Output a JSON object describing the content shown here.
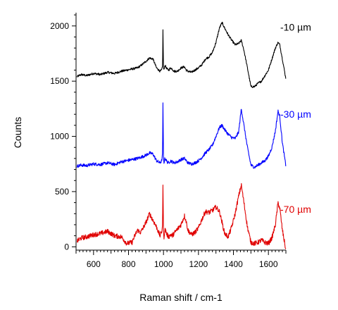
{
  "chart_data": {
    "type": "line",
    "title": "",
    "xlabel": "Raman shift / cm-1",
    "ylabel": "Counts",
    "xlim": [
      500,
      1700
    ],
    "ylim": [
      -30,
      2120
    ],
    "xticks": [
      600,
      800,
      1000,
      1200,
      1400,
      1600
    ],
    "yticks": [
      0,
      500,
      1000,
      1500,
      2000
    ],
    "grid": false,
    "legend": "right-of-traces",
    "series": [
      {
        "name": "-10 µm",
        "color": "#000000",
        "x": [
          505,
          530,
          560,
          600,
          640,
          680,
          720,
          760,
          790,
          820,
          850,
          870,
          900,
          920,
          940,
          960,
          980,
          990,
          995,
          997,
          1000,
          1003,
          1006,
          1010,
          1020,
          1030,
          1040,
          1050,
          1060,
          1080,
          1100,
          1120,
          1130,
          1140,
          1160,
          1180,
          1200,
          1220,
          1240,
          1260,
          1280,
          1300,
          1320,
          1335,
          1350,
          1370,
          1390,
          1410,
          1430,
          1445,
          1460,
          1480,
          1500,
          1520,
          1540,
          1560,
          1580,
          1600,
          1620,
          1640,
          1655,
          1665,
          1680,
          1700
        ],
        "y": [
          1540,
          1560,
          1550,
          1570,
          1560,
          1580,
          1570,
          1590,
          1600,
          1610,
          1620,
          1640,
          1680,
          1710,
          1700,
          1620,
          1590,
          1600,
          1640,
          1960,
          1620,
          1600,
          1630,
          1640,
          1610,
          1600,
          1620,
          1610,
          1590,
          1590,
          1620,
          1630,
          1600,
          1590,
          1580,
          1600,
          1620,
          1650,
          1700,
          1720,
          1760,
          1850,
          1980,
          2030,
          1980,
          1920,
          1870,
          1830,
          1840,
          1870,
          1780,
          1620,
          1450,
          1450,
          1480,
          1500,
          1550,
          1600,
          1700,
          1800,
          1850,
          1830,
          1700,
          1520
        ]
      },
      {
        "name": "-30 µm",
        "color": "#0000ff",
        "x": [
          505,
          530,
          560,
          600,
          640,
          680,
          720,
          760,
          790,
          820,
          850,
          870,
          900,
          920,
          940,
          960,
          980,
          990,
          995,
          997,
          1000,
          1003,
          1006,
          1010,
          1020,
          1030,
          1040,
          1050,
          1060,
          1080,
          1100,
          1120,
          1130,
          1140,
          1160,
          1180,
          1200,
          1220,
          1240,
          1260,
          1280,
          1300,
          1320,
          1335,
          1350,
          1370,
          1390,
          1410,
          1430,
          1445,
          1460,
          1480,
          1500,
          1520,
          1540,
          1560,
          1580,
          1600,
          1620,
          1640,
          1655,
          1665,
          1680,
          1700
        ],
        "y": [
          730,
          740,
          735,
          750,
          745,
          760,
          745,
          770,
          780,
          790,
          800,
          810,
          830,
          850,
          840,
          780,
          760,
          780,
          850,
          1310,
          800,
          760,
          790,
          800,
          770,
          760,
          780,
          770,
          760,
          770,
          790,
          800,
          780,
          760,
          750,
          760,
          780,
          810,
          850,
          880,
          920,
          1000,
          1080,
          1100,
          1060,
          1020,
          990,
          980,
          1040,
          1250,
          1100,
          900,
          740,
          720,
          740,
          760,
          780,
          820,
          900,
          1050,
          1230,
          1180,
          940,
          730
        ]
      },
      {
        "name": "-70 µm",
        "color": "#e00000",
        "x": [
          505,
          530,
          560,
          600,
          640,
          680,
          720,
          760,
          790,
          820,
          850,
          870,
          900,
          920,
          940,
          960,
          980,
          990,
          995,
          997,
          1000,
          1003,
          1006,
          1010,
          1020,
          1030,
          1040,
          1050,
          1060,
          1080,
          1100,
          1120,
          1130,
          1140,
          1160,
          1180,
          1200,
          1220,
          1240,
          1260,
          1280,
          1300,
          1320,
          1335,
          1350,
          1370,
          1390,
          1410,
          1430,
          1445,
          1460,
          1480,
          1500,
          1520,
          1540,
          1560,
          1580,
          1600,
          1620,
          1640,
          1655,
          1665,
          1680,
          1700
        ],
        "y": [
          50,
          80,
          90,
          110,
          120,
          140,
          100,
          90,
          30,
          40,
          150,
          130,
          220,
          300,
          240,
          180,
          100,
          140,
          200,
          580,
          120,
          90,
          130,
          160,
          110,
          90,
          110,
          100,
          120,
          160,
          200,
          280,
          230,
          150,
          110,
          130,
          170,
          250,
          320,
          310,
          330,
          360,
          320,
          220,
          120,
          90,
          180,
          300,
          460,
          560,
          400,
          180,
          40,
          30,
          40,
          60,
          40,
          30,
          80,
          200,
          400,
          350,
          150,
          -30
        ]
      }
    ]
  }
}
